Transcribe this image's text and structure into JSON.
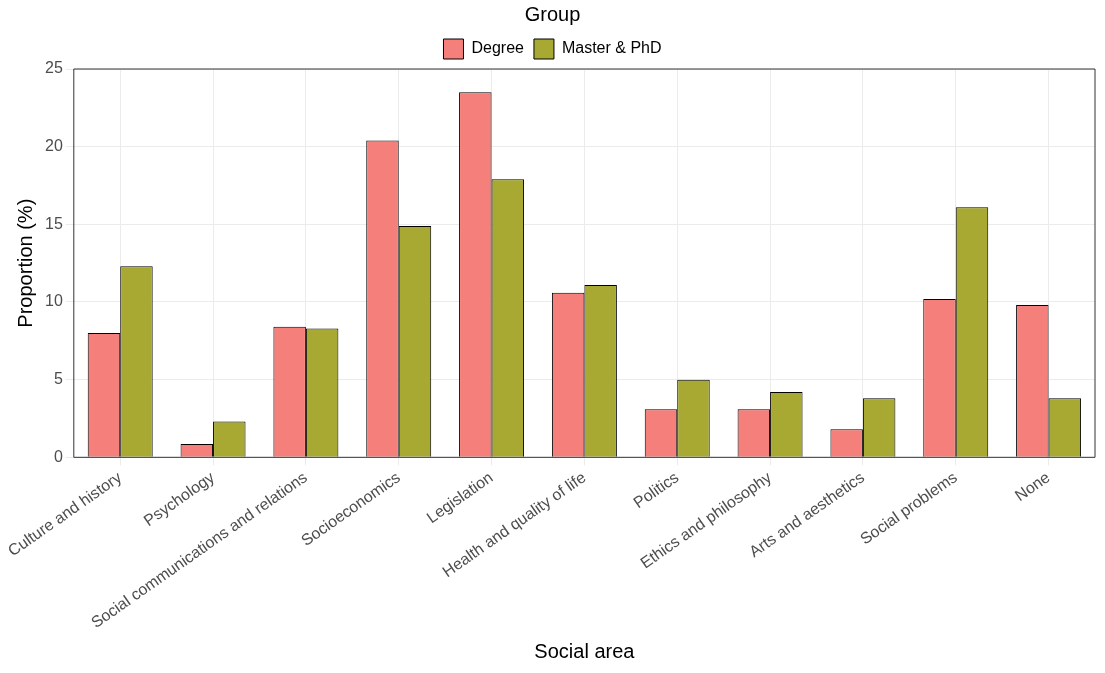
{
  "chart_data": {
    "type": "bar",
    "xlabel": "Social area",
    "ylabel": "Proportion (%)",
    "legend_title": "Group",
    "legend": "top",
    "categories": [
      "Culture and history",
      "Psychology",
      "Social communications and relations",
      "Socioeconomics",
      "Legislation",
      "Health and quality of life",
      "Politics",
      "Ethics and philosophy",
      "Arts and aesthetics",
      "Social problems",
      "None"
    ],
    "series": [
      {
        "name": "Degree",
        "color": "#f57f7a",
        "values": [
          8.0,
          0.85,
          8.4,
          20.4,
          23.5,
          10.6,
          3.1,
          3.1,
          1.8,
          10.2,
          9.8
        ]
      },
      {
        "name": "Master & PhD",
        "color": "#a7a933",
        "values": [
          12.3,
          2.3,
          8.3,
          14.9,
          17.9,
          11.1,
          5.0,
          4.2,
          3.8,
          16.1,
          3.8
        ]
      }
    ],
    "ylim": [
      0,
      25
    ],
    "yticks": [
      0,
      5,
      10,
      15,
      20,
      25
    ],
    "grid": true
  }
}
